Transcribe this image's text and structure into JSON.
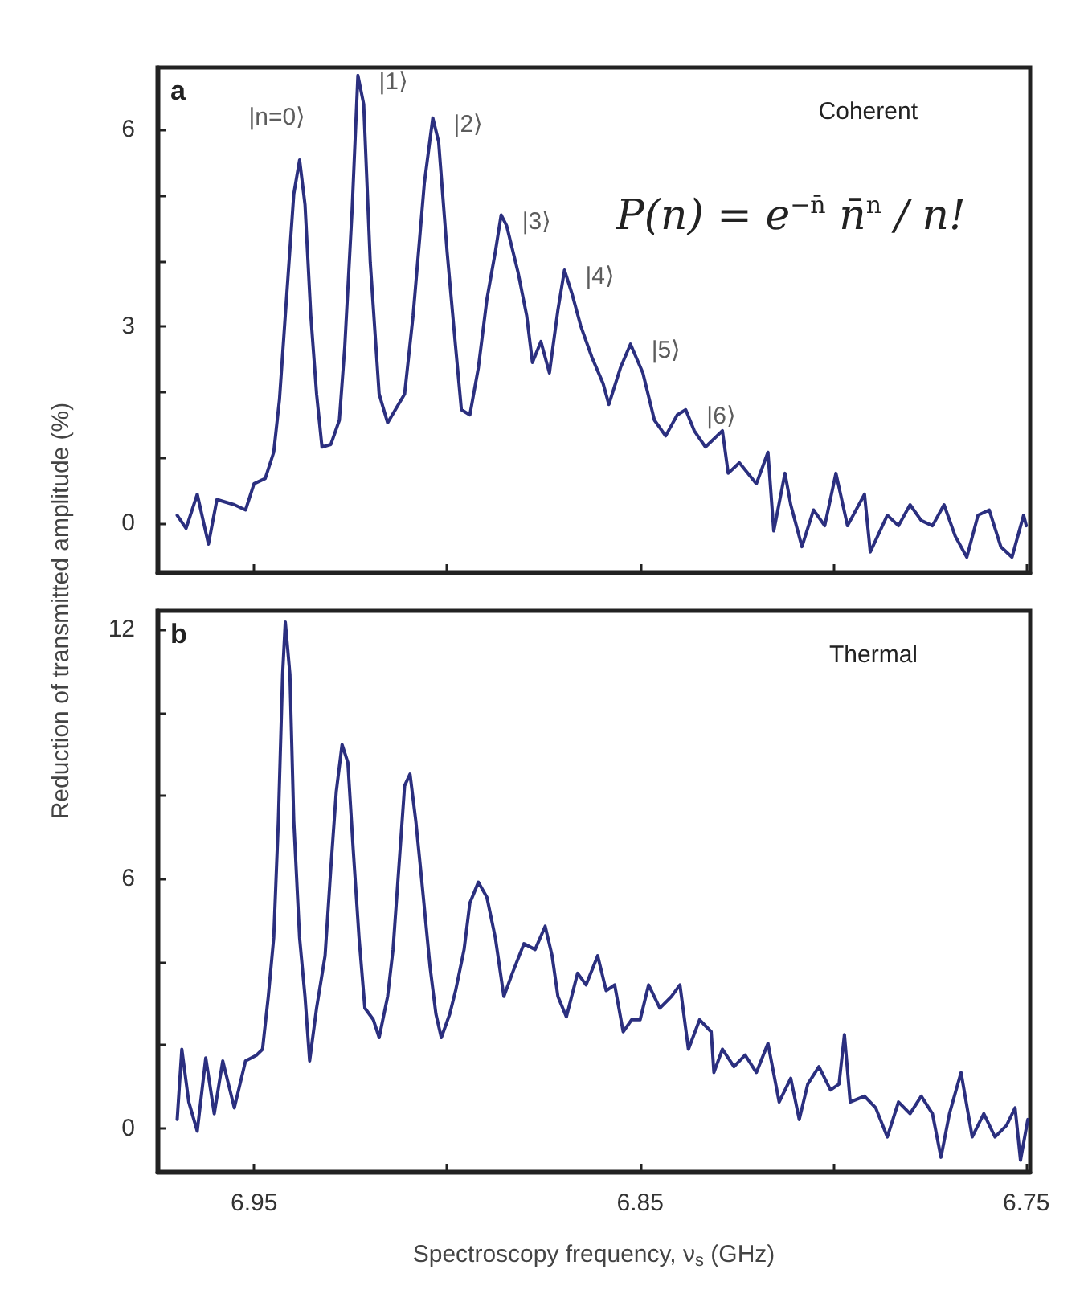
{
  "chart_data": [
    {
      "type": "line",
      "ylabel": "Reduction of transmitted amplitude (%)",
      "tick_labels": "y",
      "grid": false,
      "line_style": "solid",
      "marker": "none",
      "xlim": [
        6.975,
        6.749
      ],
      "xticks": [
        {
          "value": 6.95,
          "label": null
        },
        {
          "value": 6.9,
          "label": null
        },
        {
          "value": 6.85,
          "label": null
        },
        {
          "value": 6.8,
          "label": null
        },
        {
          "value": 6.75,
          "label": null
        }
      ],
      "ylim": [
        -0.75,
        6.95
      ],
      "yticks": [
        0,
        {
          "value": 1,
          "label": null
        },
        {
          "value": 2,
          "label": null
        },
        3,
        {
          "value": 4,
          "label": null
        },
        {
          "value": 5,
          "label": null
        },
        6
      ],
      "annotations": [
        "a",
        "Coherent",
        "P(n) = e$^{−n̄}$ n̄$^{n}$ / n!",
        {
          "text": "|n=0⟩",
          "x": 6.9382,
          "y": 5.54
        },
        {
          "text": "|1⟩",
          "x": 6.9231,
          "y": 6.83
        },
        {
          "text": "|2⟩",
          "x": 6.9037,
          "y": 6.18
        },
        {
          "text": "|3⟩",
          "x": 6.886,
          "y": 4.7
        },
        {
          "text": "|4⟩",
          "x": 6.8696,
          "y": 3.86
        },
        {
          "text": "|5⟩",
          "x": 6.8525,
          "y": 2.73
        },
        {
          "text": "|6⟩",
          "x": 6.8382,
          "y": 1.73
        }
      ],
      "series": [
        {
          "color": "#2b2f7f",
          "x": [
            6.9699,
            6.9676,
            6.9647,
            6.9618,
            6.9596,
            6.9551,
            6.9522,
            6.95,
            6.9471,
            6.9449,
            6.9434,
            6.9419,
            6.9397,
            6.9382,
            6.9368,
            6.9353,
            6.9338,
            6.9324,
            6.9301,
            6.9279,
            6.9265,
            6.9246,
            6.9231,
            6.9216,
            6.9199,
            6.9176,
            6.9154,
            6.911,
            6.9088,
            6.9059,
            6.9037,
            6.9022,
            6.9,
            6.8978,
            6.8963,
            6.8941,
            6.8919,
            6.8897,
            6.8875,
            6.886,
            6.8846,
            6.8816,
            6.8794,
            6.8779,
            6.8757,
            6.8735,
            6.8713,
            6.8696,
            6.8676,
            6.8654,
            6.8625,
            6.8596,
            6.8581,
            6.8551,
            6.8525,
            6.8493,
            6.8463,
            6.8434,
            6.8404,
            6.8382,
            6.836,
            6.8331,
            6.8287,
            6.8272,
            6.8243,
            6.8199,
            6.8169,
            6.8154,
            6.8125,
            6.811,
            6.8081,
            6.8051,
            6.8022,
            6.7993,
            6.7963,
            6.7919,
            6.7904,
            6.786,
            6.7831,
            6.7801,
            6.7772,
            6.7743,
            6.7713,
            6.7684,
            6.7654,
            6.7625,
            6.7596,
            6.7566,
            6.7537,
            6.7507,
            6.75
          ],
          "values": [
            0.12,
            -0.08,
            0.44,
            -0.32,
            0.36,
            0.28,
            0.2,
            0.6,
            0.68,
            1.08,
            1.89,
            3.17,
            5.02,
            5.54,
            4.86,
            3.17,
            1.97,
            1.16,
            1.2,
            1.57,
            2.69,
            4.78,
            6.83,
            6.39,
            3.98,
            1.97,
            1.53,
            1.97,
            3.17,
            5.18,
            6.18,
            5.82,
            4.14,
            2.69,
            1.73,
            1.65,
            2.37,
            3.41,
            4.14,
            4.7,
            4.54,
            3.82,
            3.17,
            2.45,
            2.77,
            2.29,
            3.25,
            3.86,
            3.49,
            3.01,
            2.53,
            2.13,
            1.81,
            2.37,
            2.73,
            2.29,
            1.57,
            1.33,
            1.65,
            1.73,
            1.41,
            1.16,
            1.41,
            0.76,
            0.92,
            0.6,
            1.08,
            -0.12,
            0.76,
            0.28,
            -0.36,
            0.2,
            -0.04,
            0.76,
            -0.04,
            0.44,
            -0.44,
            0.12,
            -0.04,
            0.28,
            0.04,
            -0.04,
            0.28,
            -0.2,
            -0.52,
            0.12,
            0.2,
            -0.36,
            -0.52,
            0.12,
            -0.04
          ]
        }
      ]
    },
    {
      "type": "line",
      "xlabel": "Spectroscopy frequency, ν$_{s}$ (GHz)",
      "grid": false,
      "line_style": "solid",
      "marker": "none",
      "xlim": [
        6.975,
        6.749
      ],
      "xticks": [
        {
          "value": 6.95,
          "label": "6.95"
        },
        {
          "value": 6.9,
          "label": null
        },
        {
          "value": 6.85,
          "label": "6.85"
        },
        {
          "value": 6.8,
          "label": null
        },
        {
          "value": 6.75,
          "label": "6.75"
        }
      ],
      "ylim": [
        -1.05,
        12.45
      ],
      "yticks": [
        0,
        {
          "value": 2,
          "label": null
        },
        {
          "value": 4,
          "label": null
        },
        6,
        {
          "value": 8,
          "label": null
        },
        {
          "value": 10,
          "label": null
        },
        12
      ],
      "annotations": [
        "b",
        "Thermal"
      ],
      "series": [
        {
          "color": "#2b2f7f",
          "x": [
            6.9699,
            6.9687,
            6.9669,
            6.9647,
            6.9625,
            6.9603,
            6.9581,
            6.9551,
            6.9522,
            6.9493,
            6.9478,
            6.9463,
            6.9449,
            6.9437,
            6.9426,
            6.9419,
            6.9407,
            6.9397,
            6.9382,
            6.9368,
            6.9356,
            6.9338,
            6.9316,
            6.9301,
            6.9287,
            6.9272,
            6.9257,
            6.9243,
            6.9228,
            6.9213,
            6.9191,
            6.9176,
            6.9154,
            6.914,
            6.9125,
            6.911,
            6.9096,
            6.9081,
            6.9066,
            6.9044,
            6.9029,
            6.9015,
            6.8993,
            6.8978,
            6.8956,
            6.8941,
            6.8919,
            6.8897,
            6.8875,
            6.8853,
            6.8831,
            6.8801,
            6.8772,
            6.8746,
            6.8728,
            6.8713,
            6.8691,
            6.8662,
            6.864,
            6.861,
            6.8588,
            6.8566,
            6.8544,
            6.8522,
            6.85,
            6.8478,
            6.8449,
            6.8419,
            6.8397,
            6.8375,
            6.8346,
            6.8316,
            6.8309,
            6.8287,
            6.8257,
            6.8228,
            6.8199,
            6.8169,
            6.814,
            6.811,
            6.8088,
            6.8066,
            6.8037,
            6.8007,
            6.7985,
            6.7971,
            6.7956,
            6.7919,
            6.789,
            6.786,
            6.7831,
            6.7801,
            6.7772,
            6.7743,
            6.7721,
            6.7699,
            6.7669,
            6.764,
            6.761,
            6.7581,
            6.7551,
            6.7529,
            6.7515,
            6.7496
          ],
          "values": [
            0.21,
            1.9,
            0.63,
            -0.07,
            1.69,
            0.35,
            1.62,
            0.49,
            1.62,
            1.76,
            1.9,
            3.17,
            4.58,
            7.39,
            10.92,
            12.18,
            10.92,
            7.39,
            4.58,
            3.17,
            1.62,
            2.89,
            4.15,
            6.27,
            8.1,
            9.23,
            8.8,
            6.69,
            4.58,
            2.89,
            2.61,
            2.18,
            3.17,
            4.3,
            6.27,
            8.24,
            8.52,
            7.39,
            5.99,
            3.87,
            2.75,
            2.18,
            2.75,
            3.31,
            4.3,
            5.42,
            5.92,
            5.56,
            4.58,
            3.17,
            3.73,
            4.44,
            4.3,
            4.86,
            4.15,
            3.17,
            2.68,
            3.73,
            3.45,
            4.15,
            3.31,
            3.45,
            2.32,
            2.61,
            2.61,
            3.45,
            2.89,
            3.17,
            3.45,
            1.9,
            2.61,
            2.32,
            1.34,
            1.9,
            1.48,
            1.76,
            1.34,
            2.04,
            0.63,
            1.2,
            0.21,
            1.06,
            1.48,
            0.92,
            1.06,
            2.25,
            0.63,
            0.77,
            0.49,
            -0.21,
            0.63,
            0.35,
            0.77,
            0.35,
            -0.7,
            0.35,
            1.34,
            -0.21,
            0.35,
            -0.21,
            0.07,
            0.49,
            -0.77,
            0.21
          ]
        }
      ]
    }
  ]
}
